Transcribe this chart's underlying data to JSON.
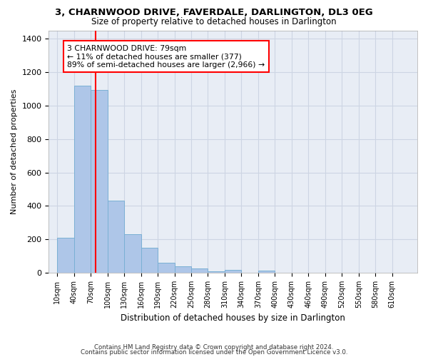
{
  "title_line1": "3, CHARNWOOD DRIVE, FAVERDALE, DARLINGTON, DL3 0EG",
  "title_line2": "Size of property relative to detached houses in Darlington",
  "xlabel": "Distribution of detached houses by size in Darlington",
  "ylabel": "Number of detached properties",
  "bar_labels": [
    "10sqm",
    "40sqm",
    "70sqm",
    "100sqm",
    "130sqm",
    "160sqm",
    "190sqm",
    "220sqm",
    "250sqm",
    "280sqm",
    "310sqm",
    "340sqm",
    "370sqm",
    "400sqm",
    "430sqm",
    "460sqm",
    "490sqm",
    "520sqm",
    "550sqm",
    "580sqm",
    "610sqm"
  ],
  "bar_heights": [
    210,
    1120,
    1095,
    430,
    230,
    148,
    58,
    40,
    25,
    10,
    16,
    0,
    15,
    0,
    0,
    0,
    0,
    0,
    0,
    0,
    0
  ],
  "bar_color": "#aec6e8",
  "bar_edge_color": "#7ab0d4",
  "vline_x": 2.633,
  "vline_color": "red",
  "annotation_text": "3 CHARNWOOD DRIVE: 79sqm\n← 11% of detached houses are smaller (377)\n89% of semi-detached houses are larger (2,966) →",
  "annotation_box_color": "white",
  "annotation_box_edge": "red",
  "ylim": [
    0,
    1450
  ],
  "yticks": [
    0,
    200,
    400,
    600,
    800,
    1000,
    1200,
    1400
  ],
  "grid_color": "#cdd5e3",
  "bg_color": "#e8edf5",
  "footer_line1": "Contains HM Land Registry data © Crown copyright and database right 2024.",
  "footer_line2": "Contains public sector information licensed under the Open Government Licence v3.0."
}
